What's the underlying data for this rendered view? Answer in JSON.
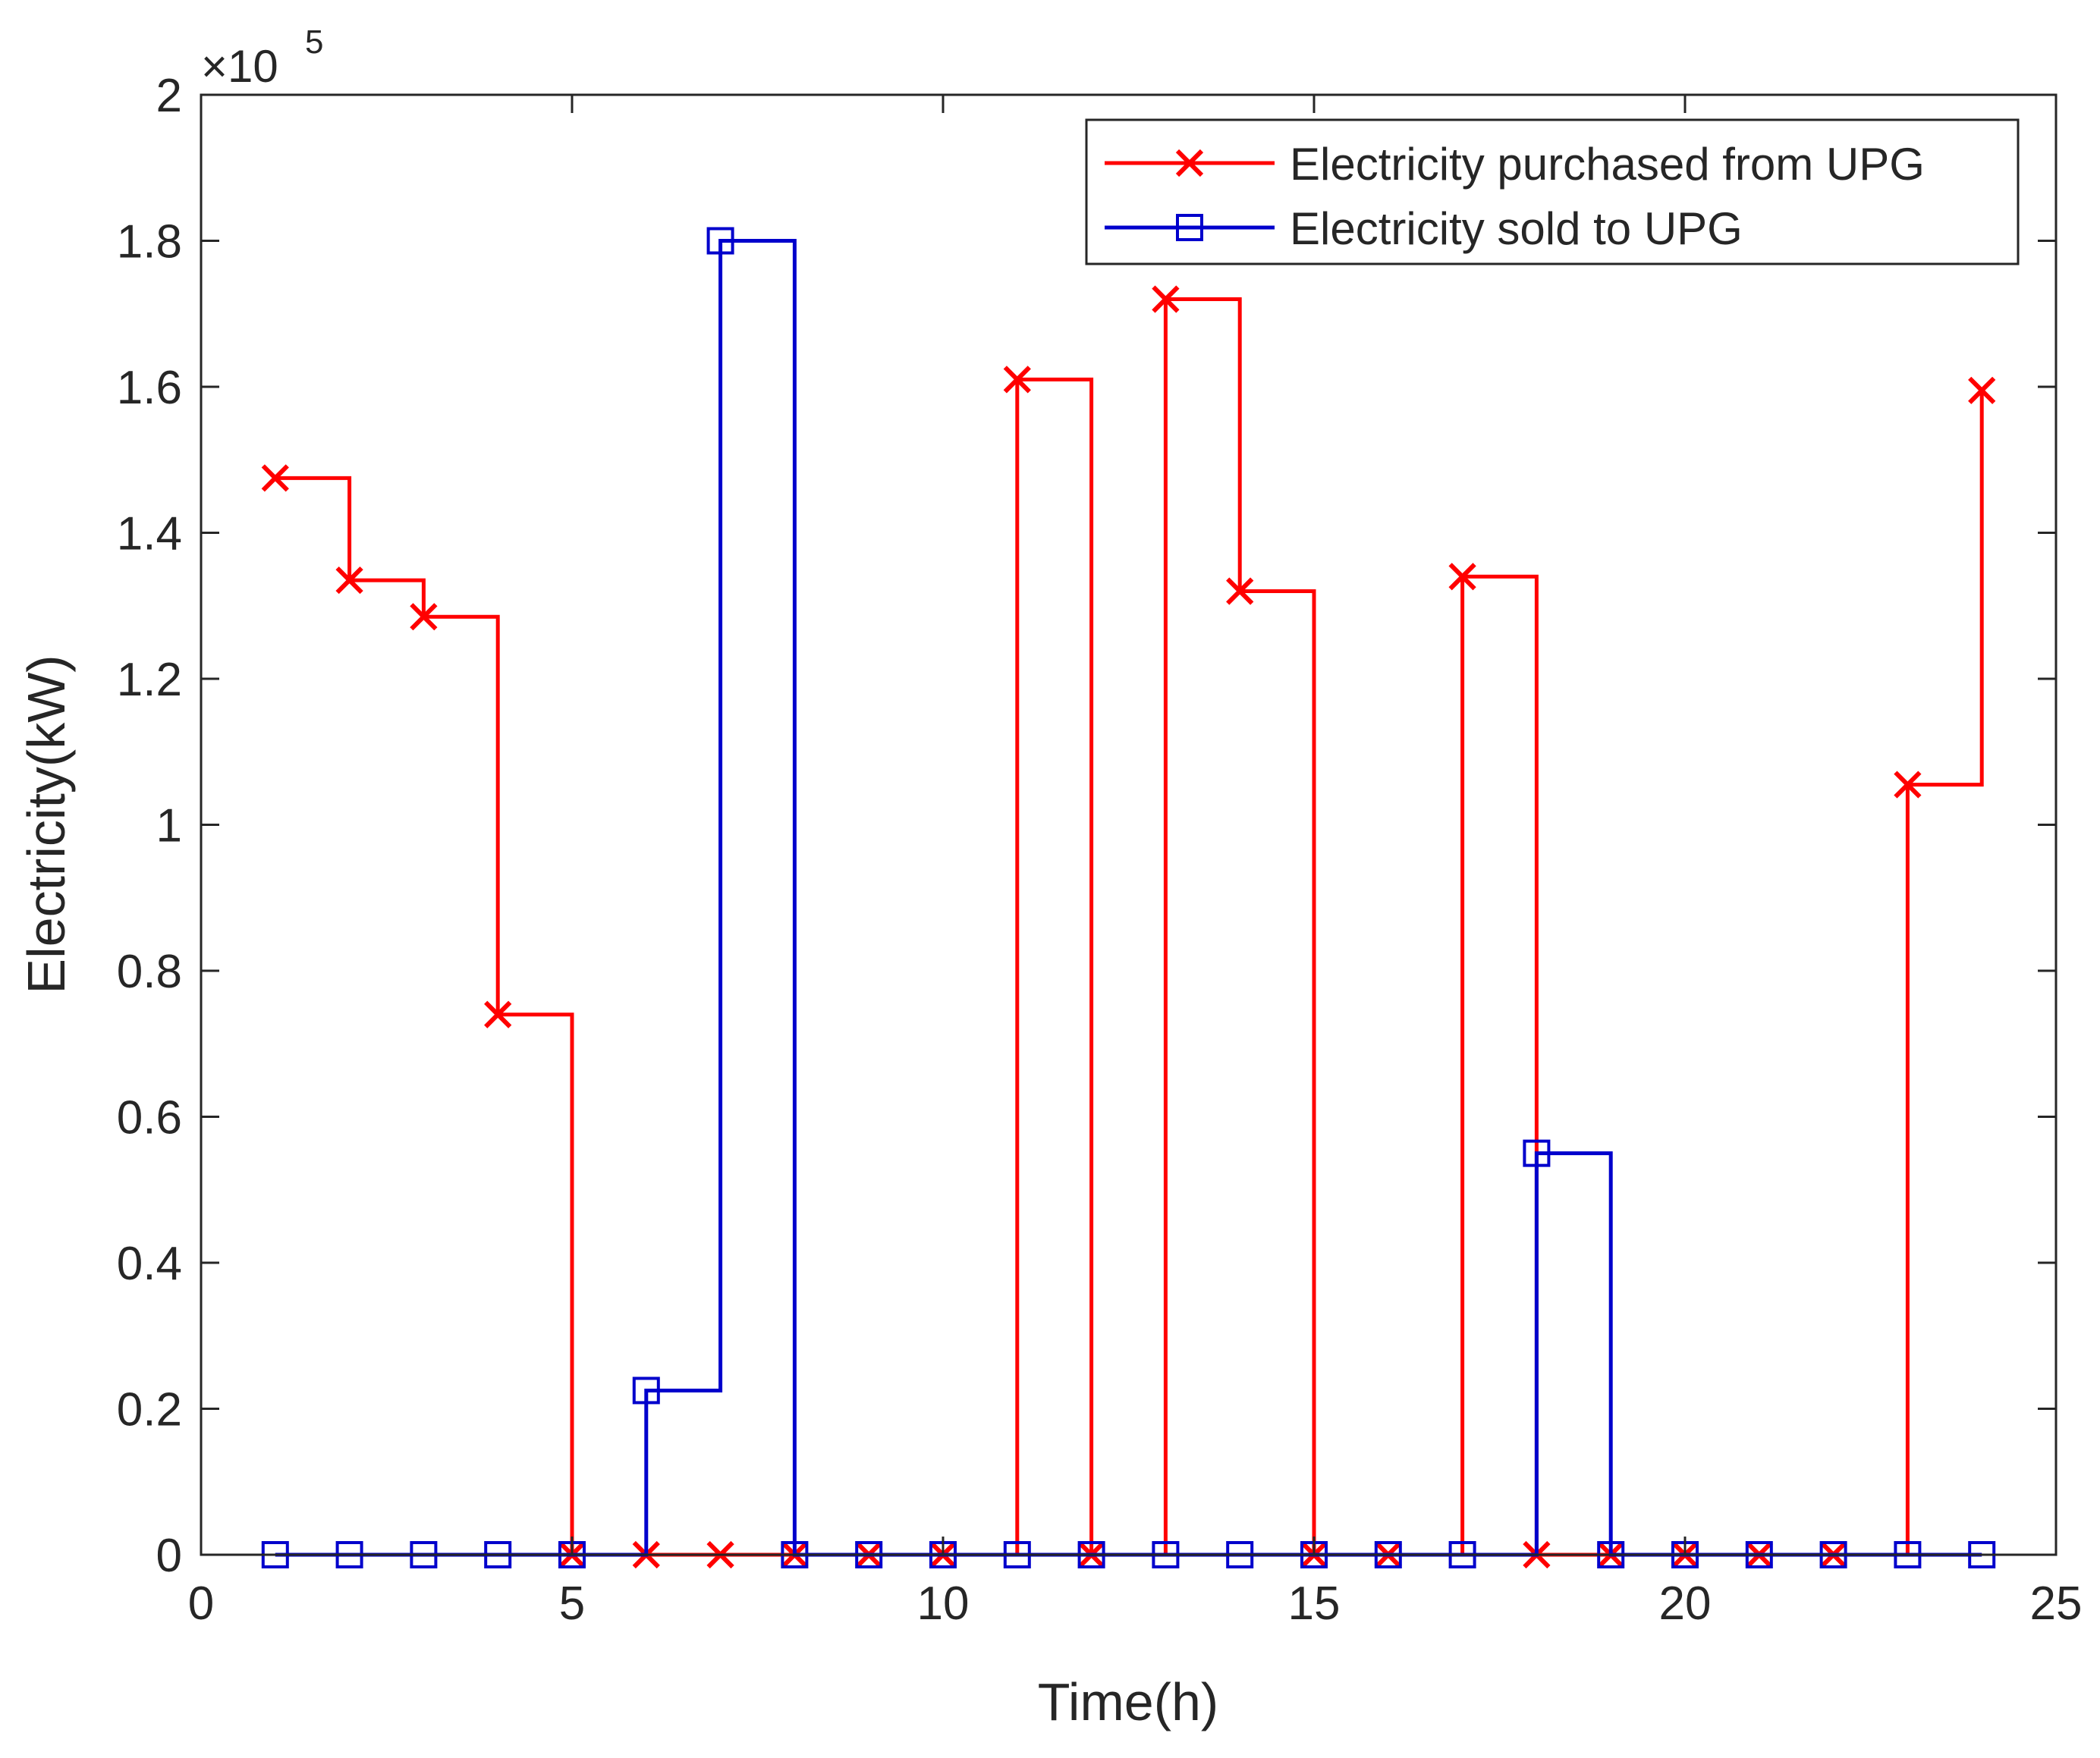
{
  "chart_data": {
    "type": "line",
    "step": "post",
    "title": "",
    "xlabel": "Time(h)",
    "ylabel": "Electricity(kW)",
    "y_exponent_label": "×10",
    "y_exponent_power": "5",
    "xlim": [
      0,
      25
    ],
    "ylim": [
      0,
      2
    ],
    "x_ticks": [
      0,
      5,
      10,
      15,
      20,
      25
    ],
    "y_ticks": [
      0,
      0.2,
      0.4,
      0.6,
      0.8,
      1,
      1.2,
      1.4,
      1.6,
      1.8,
      2
    ],
    "x_tick_labels": [
      "0",
      "5",
      "10",
      "15",
      "20",
      "25"
    ],
    "y_tick_labels": [
      "0",
      "0.2",
      "0.4",
      "0.6",
      "0.8",
      "1",
      "1.2",
      "1.4",
      "1.6",
      "1.8",
      "2"
    ],
    "x": [
      1,
      2,
      3,
      4,
      5,
      6,
      7,
      8,
      9,
      10,
      11,
      12,
      13,
      14,
      15,
      16,
      17,
      18,
      19,
      20,
      21,
      22,
      23,
      24
    ],
    "series": [
      {
        "name": "Electricity purchased from UPG",
        "color": "#ff0000",
        "marker": "x",
        "values": [
          1.475,
          1.335,
          1.285,
          0.74,
          0,
          0,
          0,
          0,
          0,
          0,
          1.61,
          0,
          1.72,
          1.32,
          0,
          0,
          1.34,
          0,
          0,
          0,
          0,
          0,
          1.055,
          1.595
        ]
      },
      {
        "name": "Electricity sold to UPG",
        "color": "#0000cc",
        "marker": "square",
        "values": [
          0,
          0,
          0,
          0,
          0,
          0.225,
          1.8,
          0,
          0,
          0,
          0,
          0,
          0,
          0,
          0,
          0,
          0,
          0.55,
          0,
          0,
          0,
          0,
          0,
          0
        ]
      }
    ],
    "legend_position": "top-right",
    "grid": false
  }
}
